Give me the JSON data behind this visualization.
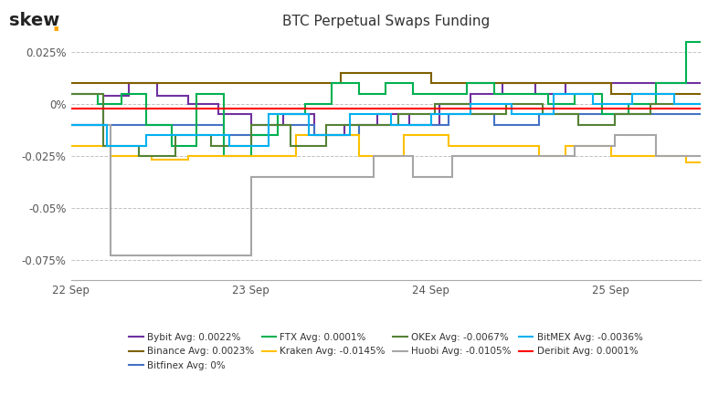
{
  "title": "BTC Perpetual Swaps Funding",
  "background_color": "#ffffff",
  "ylim": [
    -0.00085,
    0.00033
  ],
  "yticks": [
    -0.00075,
    -0.0005,
    -0.00025,
    0.0,
    0.00025
  ],
  "ytick_labels": [
    "-0.075%",
    "-0.05%",
    "-0.025%",
    "0%",
    "0.025%"
  ],
  "xtick_positions": [
    0.0,
    1.0,
    2.0,
    3.0
  ],
  "xtick_labels": [
    "22 Sep",
    "23 Sep",
    "24 Sep",
    "25 Sep"
  ],
  "series": [
    {
      "name": "Bybit",
      "color": "#7030A0",
      "avg": "0.0022%",
      "x": [
        0,
        0.18,
        0.18,
        0.32,
        0.32,
        0.48,
        0.48,
        0.65,
        0.65,
        0.82,
        0.82,
        1.0,
        1.0,
        1.18,
        1.18,
        1.35,
        1.35,
        1.52,
        1.52,
        1.7,
        1.7,
        1.88,
        1.88,
        2.05,
        2.05,
        2.22,
        2.22,
        2.4,
        2.4,
        2.58,
        2.58,
        2.75,
        2.75,
        2.92,
        2.92,
        3.1,
        3.1,
        3.28,
        3.28,
        3.5
      ],
      "y": [
        -0.0001,
        -0.0001,
        4e-05,
        4e-05,
        0.0001,
        0.0001,
        4e-05,
        4e-05,
        0.0,
        0.0,
        -5e-05,
        -5e-05,
        -0.0001,
        -0.0001,
        -5e-05,
        -5e-05,
        -0.00015,
        -0.00015,
        -0.0001,
        -0.0001,
        -5e-05,
        -5e-05,
        -0.0001,
        -0.0001,
        0.0,
        0.0,
        5e-05,
        5e-05,
        0.0001,
        0.0001,
        5e-05,
        5e-05,
        0.0001,
        0.0001,
        0.0001,
        0.0001,
        0.0001,
        0.0001,
        0.0001,
        0.0001
      ]
    },
    {
      "name": "Binance",
      "color": "#7F6000",
      "avg": "0.0023%",
      "x": [
        0,
        0.5,
        0.5,
        1.5,
        1.5,
        2.0,
        2.0,
        2.5,
        2.5,
        3.0,
        3.0,
        3.5
      ],
      "y": [
        0.0001,
        0.0001,
        0.0001,
        0.0001,
        0.00015,
        0.00015,
        0.0001,
        0.0001,
        0.0001,
        0.0001,
        5e-05,
        5e-05
      ]
    },
    {
      "name": "Bitfinex",
      "color": "#4472C4",
      "avg": "0%",
      "x": [
        0,
        0.5,
        0.5,
        0.85,
        0.85,
        1.1,
        1.1,
        1.35,
        1.35,
        1.6,
        1.6,
        1.85,
        1.85,
        2.1,
        2.1,
        2.35,
        2.35,
        2.6,
        2.6,
        2.85,
        2.85,
        3.1,
        3.1,
        3.35,
        3.35,
        3.5
      ],
      "y": [
        -0.0001,
        -0.0001,
        -0.0001,
        -0.0001,
        -0.00015,
        -0.00015,
        -0.0001,
        -0.0001,
        -0.00015,
        -0.00015,
        -0.0001,
        -0.0001,
        -0.0001,
        -0.0001,
        -5e-05,
        -5e-05,
        -0.0001,
        -0.0001,
        -5e-05,
        -5e-05,
        -5e-05,
        -5e-05,
        -5e-05,
        -5e-05,
        -5e-05,
        -5e-05
      ]
    },
    {
      "name": "FTX",
      "color": "#00B050",
      "avg": "0.0001%",
      "x": [
        0,
        0.15,
        0.15,
        0.28,
        0.28,
        0.42,
        0.42,
        0.56,
        0.56,
        0.7,
        0.7,
        0.85,
        0.85,
        1.0,
        1.0,
        1.15,
        1.15,
        1.3,
        1.3,
        1.45,
        1.45,
        1.6,
        1.6,
        1.75,
        1.75,
        1.9,
        1.9,
        2.05,
        2.05,
        2.2,
        2.2,
        2.35,
        2.35,
        2.5,
        2.5,
        2.65,
        2.65,
        2.8,
        2.8,
        2.95,
        2.95,
        3.1,
        3.1,
        3.25,
        3.25,
        3.42,
        3.42,
        3.5
      ],
      "y": [
        5e-05,
        5e-05,
        0.0,
        0.0,
        5e-05,
        5e-05,
        -0.0001,
        -0.0001,
        -0.0002,
        -0.0002,
        5e-05,
        5e-05,
        -0.00025,
        -0.00025,
        -0.00015,
        -0.00015,
        -5e-05,
        -5e-05,
        0.0,
        0.0,
        0.0001,
        0.0001,
        5e-05,
        5e-05,
        0.0001,
        0.0001,
        5e-05,
        5e-05,
        5e-05,
        5e-05,
        0.0001,
        0.0001,
        5e-05,
        5e-05,
        5e-05,
        5e-05,
        0.0,
        0.0,
        5e-05,
        5e-05,
        -5e-05,
        -5e-05,
        0.0,
        0.0,
        0.0001,
        0.0001,
        0.0003,
        0.0003
      ]
    },
    {
      "name": "Kraken",
      "color": "#FFC000",
      "avg": "-0.0145%",
      "x": [
        0,
        0.22,
        0.22,
        0.45,
        0.45,
        0.65,
        0.65,
        1.0,
        1.0,
        1.25,
        1.25,
        1.6,
        1.6,
        1.85,
        1.85,
        2.1,
        2.1,
        2.35,
        2.35,
        2.6,
        2.6,
        2.75,
        2.75,
        3.0,
        3.0,
        3.42,
        3.42,
        3.5
      ],
      "y": [
        -0.0002,
        -0.0002,
        -0.00025,
        -0.00025,
        -0.00027,
        -0.00027,
        -0.00025,
        -0.00025,
        -0.00025,
        -0.00025,
        -0.00015,
        -0.00015,
        -0.00025,
        -0.00025,
        -0.00015,
        -0.00015,
        -0.0002,
        -0.0002,
        -0.0002,
        -0.0002,
        -0.00025,
        -0.00025,
        -0.0002,
        -0.0002,
        -0.00025,
        -0.00025,
        -0.00028,
        -0.00028
      ]
    },
    {
      "name": "OKEx",
      "color": "#548235",
      "avg": "-0.0067%",
      "x": [
        0,
        0.18,
        0.18,
        0.38,
        0.38,
        0.58,
        0.58,
        0.78,
        0.78,
        1.0,
        1.0,
        1.22,
        1.22,
        1.42,
        1.42,
        1.62,
        1.62,
        1.82,
        1.82,
        2.02,
        2.02,
        2.22,
        2.22,
        2.42,
        2.42,
        2.62,
        2.62,
        2.82,
        2.82,
        3.02,
        3.02,
        3.22,
        3.22,
        3.5
      ],
      "y": [
        5e-05,
        5e-05,
        -0.0002,
        -0.0002,
        -0.00025,
        -0.00025,
        -0.00015,
        -0.00015,
        -0.0002,
        -0.0002,
        -0.0001,
        -0.0001,
        -0.0002,
        -0.0002,
        -0.0001,
        -0.0001,
        -0.0001,
        -0.0001,
        -5e-05,
        -5e-05,
        0.0,
        0.0,
        -5e-05,
        -5e-05,
        0.0,
        0.0,
        -5e-05,
        -5e-05,
        -0.0001,
        -0.0001,
        -5e-05,
        -5e-05,
        0.0,
        0.0
      ]
    },
    {
      "name": "Huobi",
      "color": "#A6A6A6",
      "avg": "-0.0105%",
      "x": [
        0,
        0.22,
        0.22,
        1.0,
        1.0,
        1.22,
        1.22,
        1.45,
        1.45,
        1.68,
        1.68,
        1.9,
        1.9,
        2.12,
        2.12,
        2.35,
        2.35,
        2.58,
        2.58,
        2.8,
        2.8,
        3.02,
        3.02,
        3.25,
        3.25,
        3.5
      ],
      "y": [
        -0.0001,
        -0.0001,
        -0.00073,
        -0.00073,
        -0.00035,
        -0.00035,
        -0.00035,
        -0.00035,
        -0.00035,
        -0.00035,
        -0.00025,
        -0.00025,
        -0.00035,
        -0.00035,
        -0.00025,
        -0.00025,
        -0.00025,
        -0.00025,
        -0.00025,
        -0.00025,
        -0.0002,
        -0.0002,
        -0.00015,
        -0.00015,
        -0.00025,
        -0.00025
      ]
    },
    {
      "name": "BitMEX",
      "color": "#00B0F0",
      "avg": "-0.0036%",
      "x": [
        0,
        0.2,
        0.2,
        0.42,
        0.42,
        0.65,
        0.65,
        0.88,
        0.88,
        1.1,
        1.1,
        1.32,
        1.32,
        1.55,
        1.55,
        1.78,
        1.78,
        2.0,
        2.0,
        2.22,
        2.22,
        2.45,
        2.45,
        2.68,
        2.68,
        2.9,
        2.9,
        3.12,
        3.12,
        3.35,
        3.35,
        3.5
      ],
      "y": [
        -0.0001,
        -0.0001,
        -0.0002,
        -0.0002,
        -0.00015,
        -0.00015,
        -0.00015,
        -0.00015,
        -0.0002,
        -0.0002,
        -5e-05,
        -5e-05,
        -0.00015,
        -0.00015,
        -5e-05,
        -5e-05,
        -0.0001,
        -0.0001,
        -5e-05,
        -5e-05,
        0.0,
        0.0,
        -5e-05,
        -5e-05,
        5e-05,
        5e-05,
        0.0,
        0.0,
        5e-05,
        5e-05,
        0.0,
        0.0
      ]
    },
    {
      "name": "Deribit",
      "color": "#FF0000",
      "avg": "0.0001%",
      "x": [
        0,
        3.5
      ],
      "y": [
        -2e-05,
        -2e-05
      ]
    }
  ],
  "legend_order": [
    {
      "name": "Bybit",
      "avg": "0.0022%",
      "color": "#7030A0"
    },
    {
      "name": "Binance",
      "avg": "0.0023%",
      "color": "#7F6000"
    },
    {
      "name": "Bitfinex",
      "avg": "0%",
      "color": "#4472C4"
    },
    {
      "name": "FTX",
      "avg": "0.0001%",
      "color": "#00B050"
    },
    {
      "name": "Kraken",
      "avg": "-0.0145%",
      "color": "#FFC000"
    },
    {
      "name": "OKEx",
      "avg": "-0.0067%",
      "color": "#548235"
    },
    {
      "name": "Huobi",
      "avg": "-0.0105%",
      "color": "#A6A6A6"
    },
    {
      "name": "BitMEX",
      "avg": "-0.0036%",
      "color": "#00B0F0"
    },
    {
      "name": "Deribit",
      "avg": "0.0001%",
      "color": "#FF0000"
    }
  ]
}
